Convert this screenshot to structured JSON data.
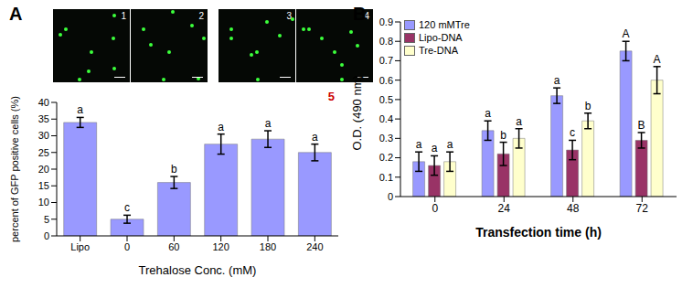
{
  "images": [
    "1",
    "2",
    "3",
    "4"
  ],
  "chart_data": [
    {
      "panel": "A",
      "type": "bar",
      "annotation": "5",
      "categories": [
        "Lipo",
        "0",
        "60",
        "120",
        "180",
        "240"
      ],
      "values": [
        34,
        5,
        16,
        27.5,
        29,
        25
      ],
      "errors": [
        1.5,
        1.2,
        1.8,
        3,
        2.5,
        2.5
      ],
      "letters": [
        "a",
        "c",
        "b",
        "a",
        "a",
        "a"
      ],
      "color": "#9999ff",
      "y_label": "percent of GFP positive cells (%)",
      "x_label": "Trehalose Conc. (mM)",
      "ylim": [
        0,
        40
      ],
      "yticks": [
        0,
        5,
        10,
        15,
        20,
        25,
        30,
        35,
        40
      ],
      "grid": false
    },
    {
      "panel": "B",
      "type": "bar",
      "categories": [
        "0",
        "24",
        "48",
        "72"
      ],
      "series": [
        {
          "name": "120 mMTre",
          "color": "#9999ff",
          "values": [
            0.18,
            0.34,
            0.52,
            0.75
          ],
          "errors": [
            0.05,
            0.05,
            0.04,
            0.05
          ],
          "letters": [
            "a",
            "a",
            "a",
            "A"
          ]
        },
        {
          "name": "Lipo-DNA",
          "color": "#993366",
          "values": [
            0.16,
            0.22,
            0.24,
            0.29
          ],
          "errors": [
            0.05,
            0.06,
            0.05,
            0.04
          ],
          "letters": [
            "a",
            "b",
            "c",
            "B"
          ]
        },
        {
          "name": "Tre-DNA",
          "color": "#ffffcc",
          "values": [
            0.18,
            0.3,
            0.39,
            0.6
          ],
          "errors": [
            0.05,
            0.05,
            0.04,
            0.07
          ],
          "letters": [
            "a",
            "a",
            "b",
            "A"
          ]
        }
      ],
      "y_label": "O.D. (490 nm)",
      "x_label": "Transfection time (h)",
      "ylim": [
        0,
        0.9
      ],
      "yticks": [
        0,
        0.1,
        0.2,
        0.3,
        0.4,
        0.5,
        0.6,
        0.7,
        0.8,
        0.9
      ],
      "legend": "top-left",
      "grid": false
    }
  ]
}
